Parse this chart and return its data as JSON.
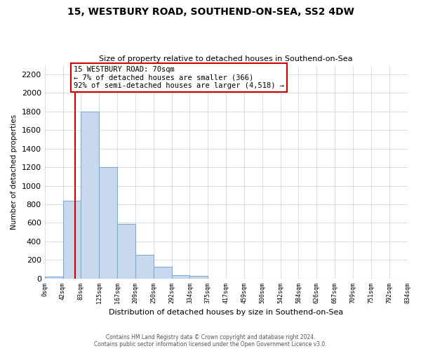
{
  "title": "15, WESTBURY ROAD, SOUTHEND-ON-SEA, SS2 4DW",
  "subtitle": "Size of property relative to detached houses in Southend-on-Sea",
  "xlabel": "Distribution of detached houses by size in Southend-on-Sea",
  "ylabel": "Number of detached properties",
  "bar_values": [
    20,
    840,
    1800,
    1200,
    590,
    255,
    125,
    40,
    25,
    0,
    0,
    0,
    0,
    0,
    0,
    0,
    0,
    0,
    0,
    0
  ],
  "bar_labels": [
    "0sqm",
    "42sqm",
    "83sqm",
    "125sqm",
    "167sqm",
    "209sqm",
    "250sqm",
    "292sqm",
    "334sqm",
    "375sqm",
    "417sqm",
    "459sqm",
    "500sqm",
    "542sqm",
    "584sqm",
    "626sqm",
    "667sqm",
    "709sqm",
    "751sqm",
    "792sqm",
    "834sqm"
  ],
  "bar_color": "#c8d9ef",
  "bar_edge_color": "#7aadd4",
  "property_line_color": "#cc0000",
  "annotation_title": "15 WESTBURY ROAD: 70sqm",
  "annotation_line1": "← 7% of detached houses are smaller (366)",
  "annotation_line2": "92% of semi-detached houses are larger (4,518) →",
  "annotation_box_color": "#ffffff",
  "annotation_box_edge": "#cc0000",
  "ylim": [
    0,
    2300
  ],
  "yticks": [
    0,
    200,
    400,
    600,
    800,
    1000,
    1200,
    1400,
    1600,
    1800,
    2000,
    2200
  ],
  "footer_line1": "Contains HM Land Registry data © Crown copyright and database right 2024.",
  "footer_line2": "Contains public sector information licensed under the Open Government Licence v3.0.",
  "background_color": "#ffffff",
  "grid_color": "#d0d8e8"
}
